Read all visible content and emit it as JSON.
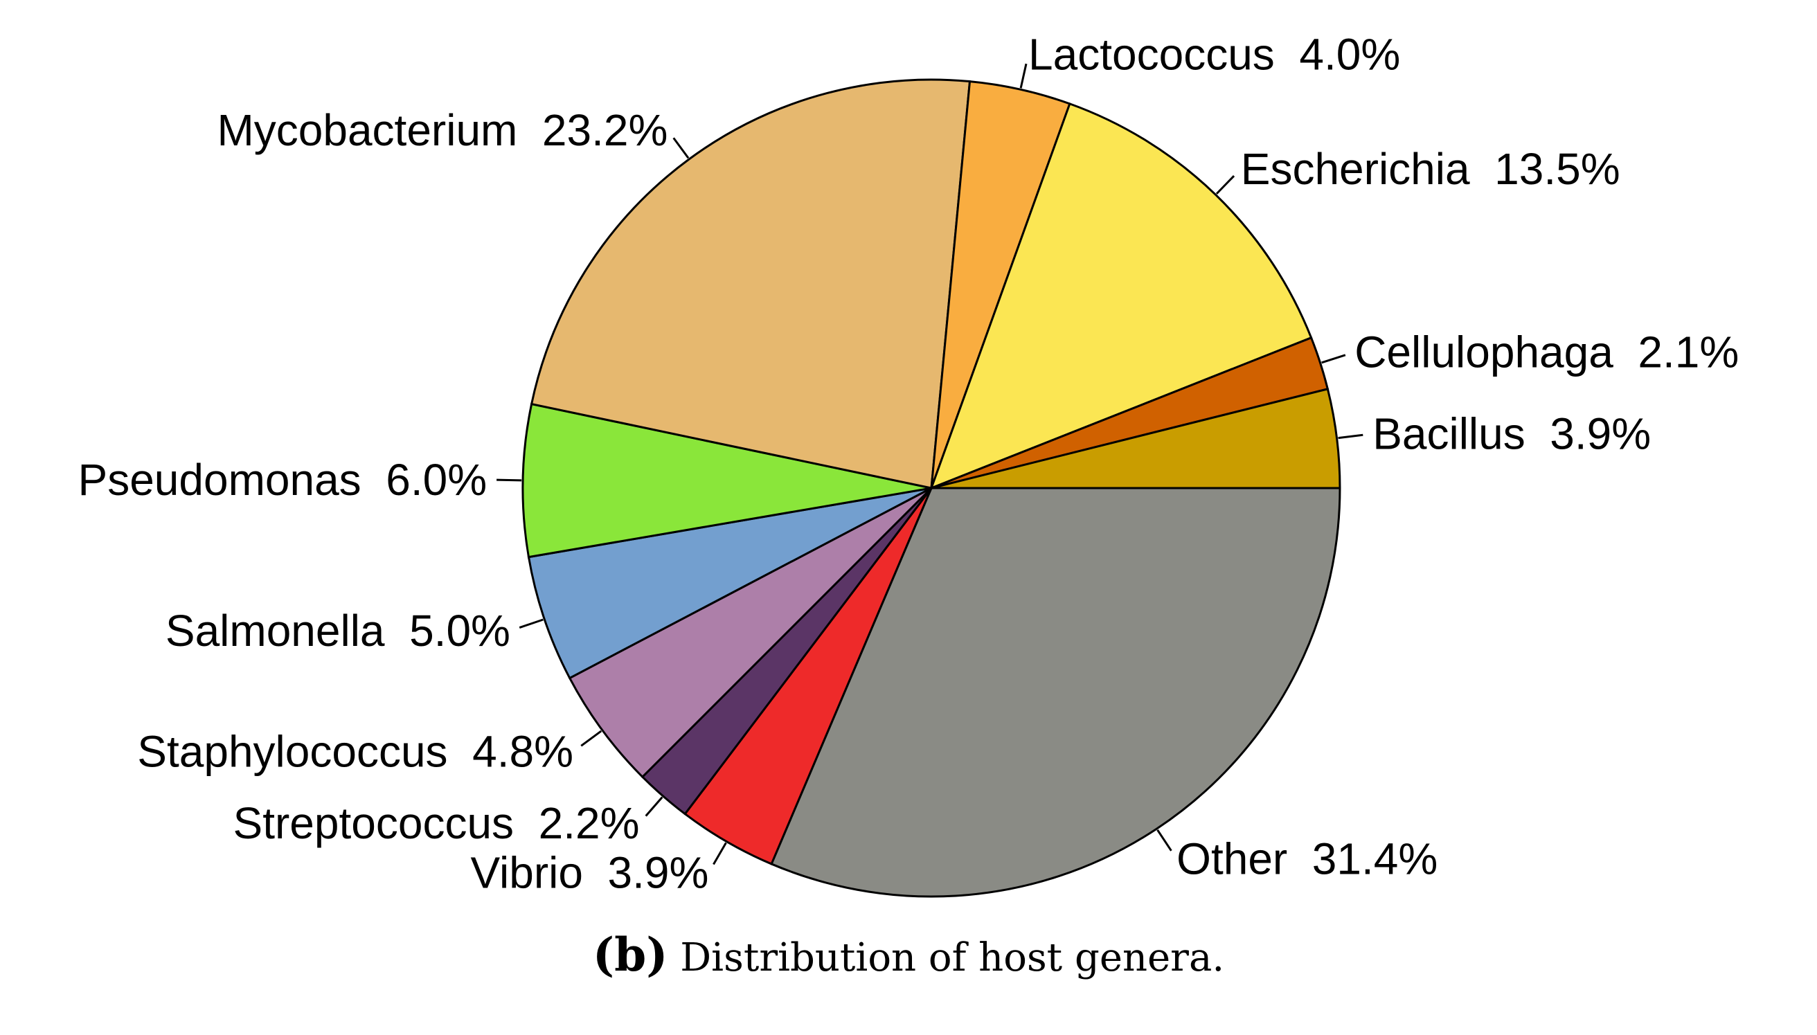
{
  "chart_data": {
    "type": "pie",
    "slices": [
      {
        "label": "Other",
        "value_text": "31.4%",
        "value": 31.4,
        "color": "#8a8b85"
      },
      {
        "label": "Vibrio",
        "value_text": "3.9%",
        "value": 3.9,
        "color": "#ee2a2a"
      },
      {
        "label": "Streptococcus",
        "value_text": "2.2%",
        "value": 2.2,
        "color": "#5b3566"
      },
      {
        "label": "Staphylococcus",
        "value_text": "4.8%",
        "value": 4.8,
        "color": "#ad7fa9"
      },
      {
        "label": "Salmonella",
        "value_text": "5.0%",
        "value": 5.0,
        "color": "#739fcf"
      },
      {
        "label": "Pseudomonas",
        "value_text": "6.0%",
        "value": 6.0,
        "color": "#8ae63a"
      },
      {
        "label": "Mycobacterium",
        "value_text": "23.2%",
        "value": 23.2,
        "color": "#e6b86f"
      },
      {
        "label": "Lactococcus",
        "value_text": "4.0%",
        "value": 4.0,
        "color": "#f9ad40"
      },
      {
        "label": "Escherichia",
        "value_text": "13.5%",
        "value": 13.5,
        "color": "#fbe653"
      },
      {
        "label": "Cellulophaga",
        "value_text": "2.1%",
        "value": 2.1,
        "color": "#d06100"
      },
      {
        "label": "Bacillus",
        "value_text": "3.9%",
        "value": 3.9,
        "color": "#c99d00"
      }
    ]
  },
  "caption": {
    "tag": "(b)",
    "text": "Distribution of host genera."
  }
}
